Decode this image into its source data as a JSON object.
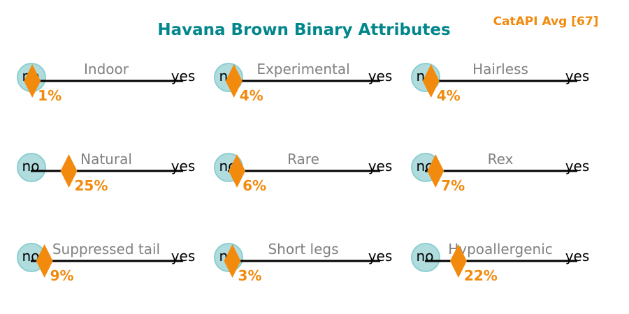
{
  "title": "Havana Brown Binary Attributes",
  "average_label": "CatAPI Avg [67]",
  "colors": {
    "title": "#00868b",
    "average": "#f28a0e",
    "marker": "#f28a0e",
    "percent": "#f28a0e",
    "circle_fill": "#b1dcde",
    "circle_stroke": "#8ccfd1",
    "line": "#000000",
    "attribute_label": "#808080",
    "end_label": "#000000"
  },
  "chart_data": {
    "type": "scatter",
    "title": "Havana Brown Binary Attributes",
    "scale": {
      "left_label": "no",
      "right_label": "yes",
      "range": [
        0,
        100
      ]
    },
    "attributes": [
      {
        "name": "Indoor",
        "percent": 1,
        "percent_label": "1%"
      },
      {
        "name": "Experimental",
        "percent": 4,
        "percent_label": "4%"
      },
      {
        "name": "Hairless",
        "percent": 4,
        "percent_label": "4%"
      },
      {
        "name": "Natural",
        "percent": 25,
        "percent_label": "25%"
      },
      {
        "name": "Rare",
        "percent": 6,
        "percent_label": "6%"
      },
      {
        "name": "Rex",
        "percent": 7,
        "percent_label": "7%"
      },
      {
        "name": "Suppressed tail",
        "percent": 9,
        "percent_label": "9%"
      },
      {
        "name": "Short legs",
        "percent": 3,
        "percent_label": "3%"
      },
      {
        "name": "Hypoallergenic",
        "percent": 22,
        "percent_label": "22%"
      }
    ]
  }
}
